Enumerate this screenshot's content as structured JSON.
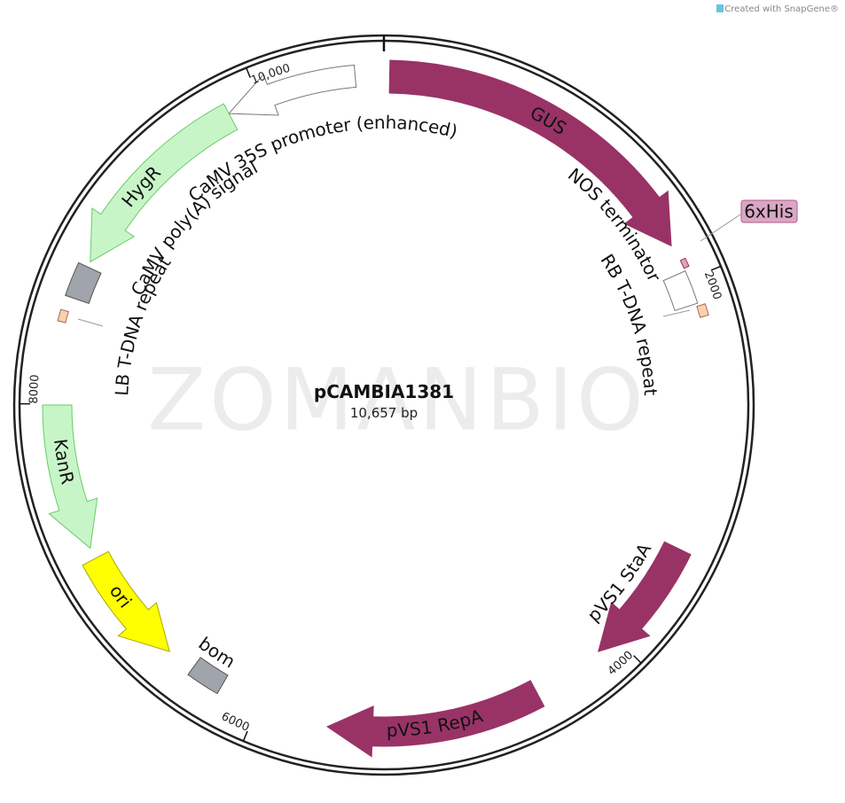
{
  "header": {
    "credit": "Created with SnapGene®"
  },
  "watermark": "ZOMANBIO",
  "plasmid": {
    "name": "pCAMBIA1381",
    "size": "10,657 bp"
  },
  "features": [
    {
      "label": "GUS"
    },
    {
      "label": "CaMV 35S promoter (enhanced)"
    },
    {
      "label": "HygR"
    },
    {
      "label": "CaMV poly(A) signal"
    },
    {
      "label": "LB T-DNA repeat"
    },
    {
      "label": "KanR"
    },
    {
      "label": "ori"
    },
    {
      "label": "bom"
    },
    {
      "label": "pVS1 RepA"
    },
    {
      "label": "pVS1 StaA"
    },
    {
      "label": "6xHis"
    },
    {
      "label": "NOS terminator"
    },
    {
      "label": "RB T-DNA repeat"
    }
  ],
  "ticks": [
    "2000",
    "4000",
    "6000",
    "8000",
    "10,000"
  ]
}
